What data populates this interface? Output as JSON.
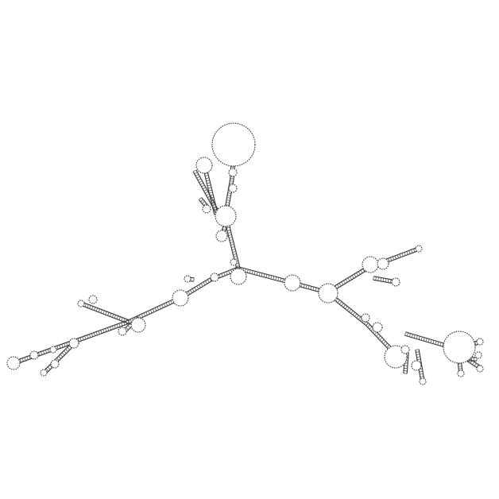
{
  "figure": {
    "kind": "rna-secondary-structure",
    "colors": {
      "background": "#ffffff",
      "backbone": "#333333",
      "base_pair": "#555555"
    },
    "labels": []
  }
}
